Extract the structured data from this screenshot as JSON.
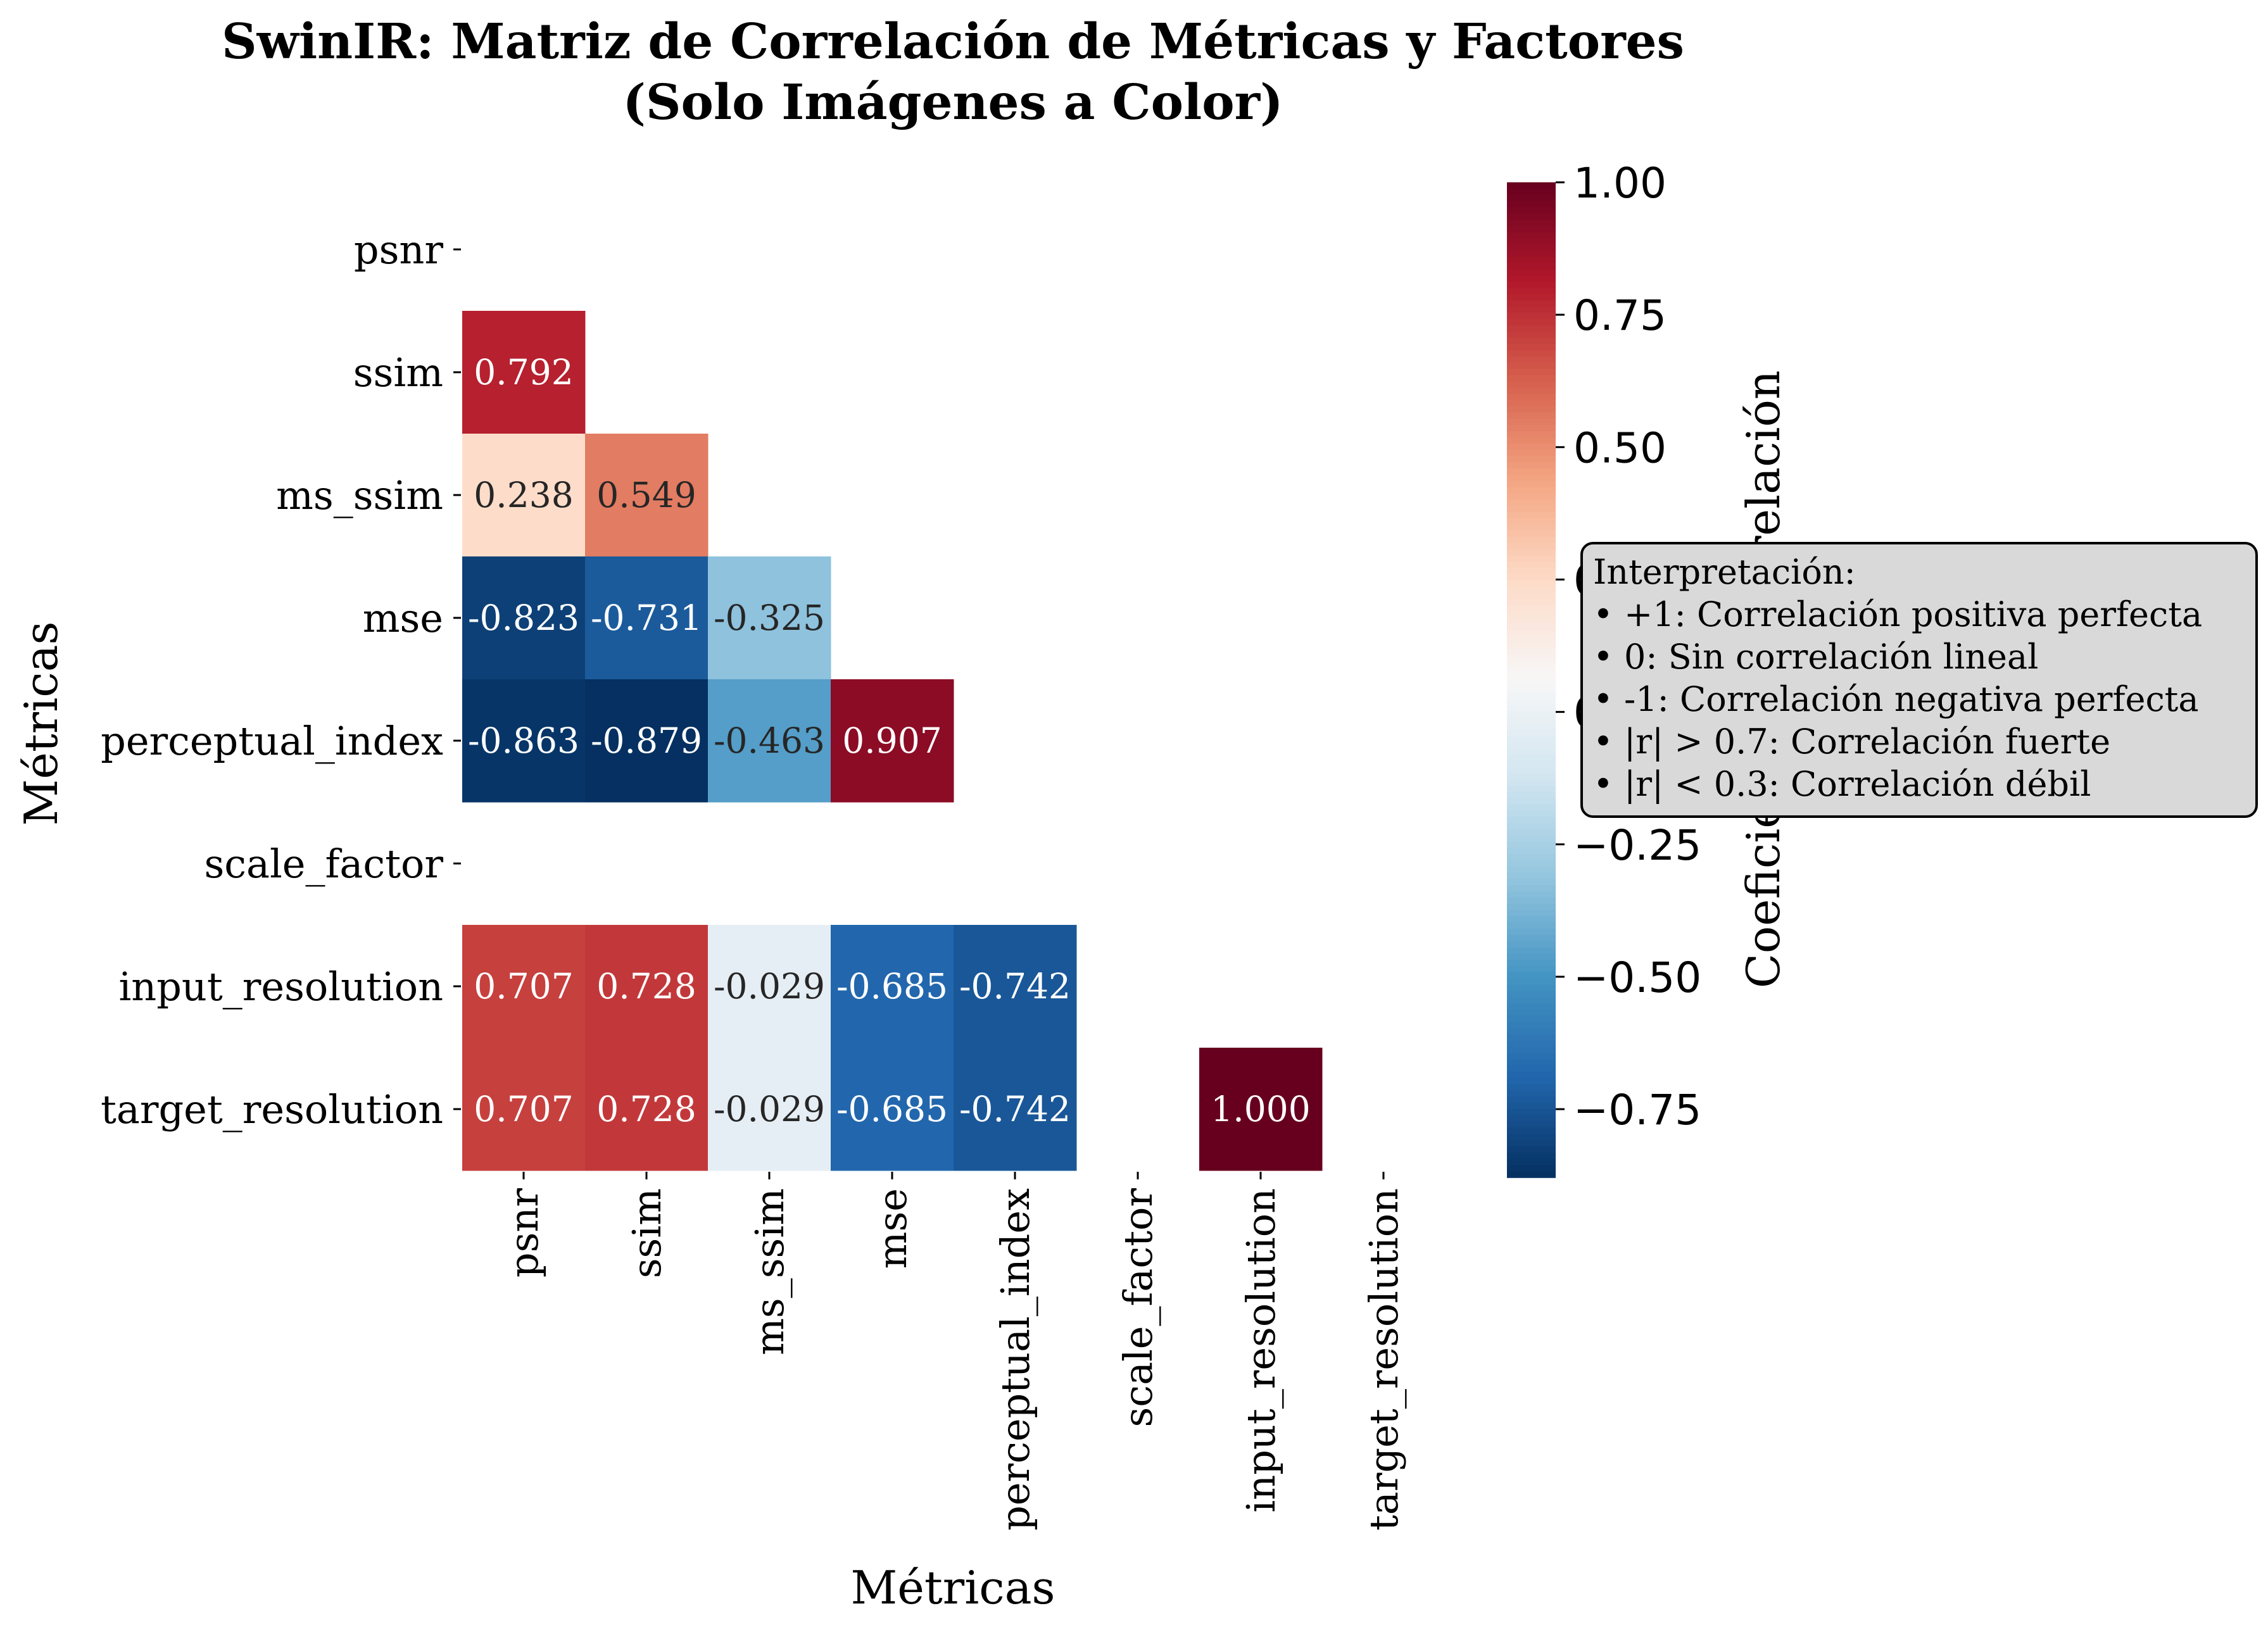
{
  "chart_data": {
    "type": "heatmap",
    "title": "SwinIR: Matriz de Correlación de Métricas y Factores",
    "subtitle": "(Solo Imágenes a Color)",
    "xlabel": "Métricas",
    "ylabel": "Métricas",
    "rows": [
      "psnr",
      "ssim",
      "ms_ssim",
      "mse",
      "perceptual_index",
      "scale_factor",
      "input_resolution",
      "target_resolution"
    ],
    "columns": [
      "psnr",
      "ssim",
      "ms_ssim",
      "mse",
      "perceptual_index",
      "scale_factor",
      "input_resolution",
      "target_resolution"
    ],
    "values": [
      [
        null,
        null,
        null,
        null,
        null,
        null,
        null,
        null
      ],
      [
        0.792,
        null,
        null,
        null,
        null,
        null,
        null,
        null
      ],
      [
        0.238,
        0.549,
        null,
        null,
        null,
        null,
        null,
        null
      ],
      [
        -0.823,
        -0.731,
        -0.325,
        null,
        null,
        null,
        null,
        null
      ],
      [
        -0.863,
        -0.879,
        -0.463,
        0.907,
        null,
        null,
        null,
        null
      ],
      [
        null,
        null,
        null,
        null,
        null,
        null,
        null,
        null
      ],
      [
        0.707,
        0.728,
        -0.029,
        -0.685,
        -0.742,
        null,
        null,
        null
      ],
      [
        0.707,
        0.728,
        -0.029,
        -0.685,
        -0.742,
        null,
        1.0,
        null
      ]
    ],
    "labels": [
      [
        null,
        null,
        null,
        null,
        null,
        null,
        null,
        null
      ],
      [
        "0.792",
        null,
        null,
        null,
        null,
        null,
        null,
        null
      ],
      [
        "0.238",
        "0.549",
        null,
        null,
        null,
        null,
        null,
        null
      ],
      [
        "-0.823",
        "-0.731",
        "-0.325",
        null,
        null,
        null,
        null,
        null
      ],
      [
        "-0.863",
        "-0.879",
        "-0.463",
        "0.907",
        null,
        null,
        null,
        null
      ],
      [
        null,
        null,
        null,
        null,
        null,
        null,
        null,
        null
      ],
      [
        "0.707",
        "0.728",
        "-0.029",
        "-0.685",
        "-0.742",
        null,
        null,
        null
      ],
      [
        "0.707",
        "0.728",
        "-0.029",
        "-0.685",
        "-0.742",
        null,
        "1.000",
        null
      ]
    ],
    "colormap": "RdBu_r",
    "vmin": -0.879,
    "vmax": 1.0,
    "colorbar": {
      "label": "Coeficiente de Correlación",
      "ticks": [
        1.0,
        0.75,
        0.5,
        0.25,
        0.0,
        -0.25,
        -0.5,
        -0.75
      ],
      "tick_labels": [
        "1.00",
        "0.75",
        "0.50",
        "0.25",
        "0.00",
        "−0.25",
        "−0.50",
        "−0.75"
      ]
    },
    "legend": {
      "placement": "right",
      "lines": [
        "Interpretación:",
        "• +1: Correlación positiva perfecta",
        "• 0: Sin correlación lineal",
        "• -1: Correlación negativa perfecta",
        "• |r| > 0.7: Correlación fuerte",
        "• |r| < 0.3: Correlación débil"
      ]
    }
  }
}
